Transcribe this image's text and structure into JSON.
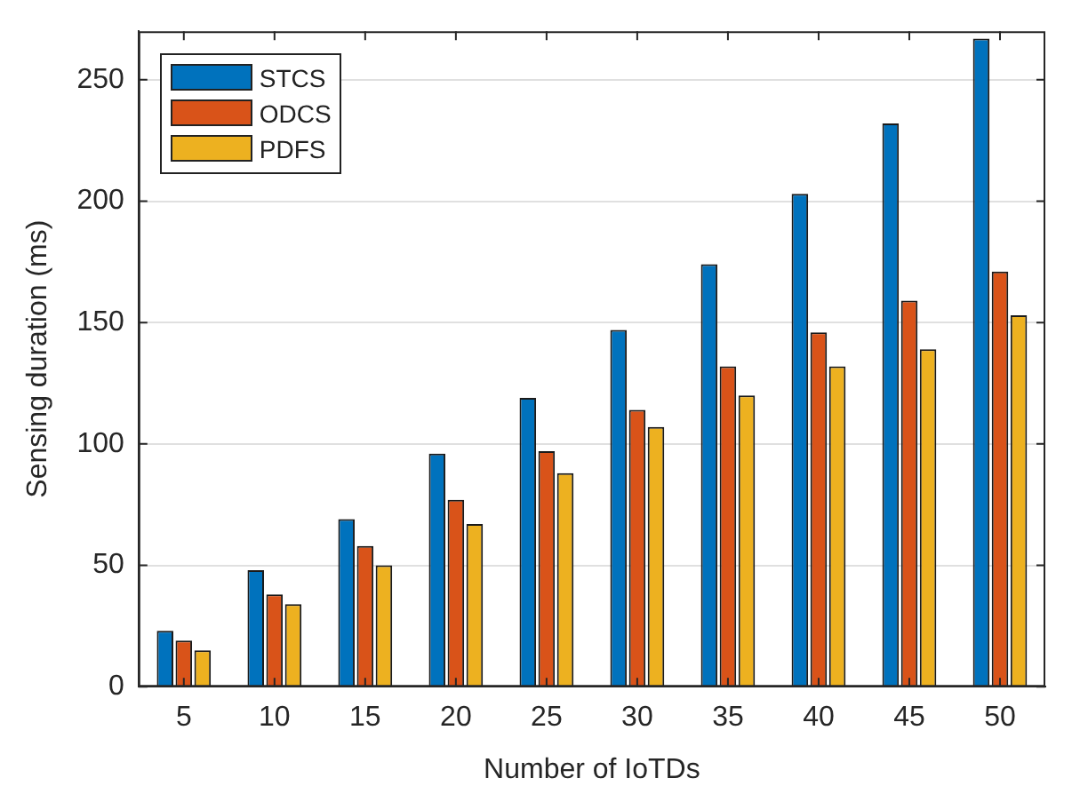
{
  "chart_data": {
    "type": "bar",
    "xlabel": "Number of IoTDs",
    "ylabel": "Sensing duration (ms)",
    "categories": [
      "5",
      "10",
      "15",
      "20",
      "25",
      "30",
      "35",
      "40",
      "45",
      "50"
    ],
    "series": [
      {
        "name": "STCS",
        "color": "#0072bd",
        "values": [
          23,
          48,
          69,
          96,
          119,
          147,
          174,
          203,
          232,
          267
        ]
      },
      {
        "name": "ODCS",
        "color": "#d95319",
        "values": [
          19,
          38,
          58,
          77,
          97,
          114,
          132,
          146,
          159,
          171
        ]
      },
      {
        "name": "PDFS",
        "color": "#edb120",
        "values": [
          15,
          34,
          50,
          67,
          88,
          107,
          120,
          132,
          139,
          153
        ]
      }
    ],
    "ylim": [
      0,
      270
    ],
    "yticks": [
      0,
      50,
      100,
      150,
      200,
      250
    ],
    "grid": "y",
    "legend": "top left"
  }
}
